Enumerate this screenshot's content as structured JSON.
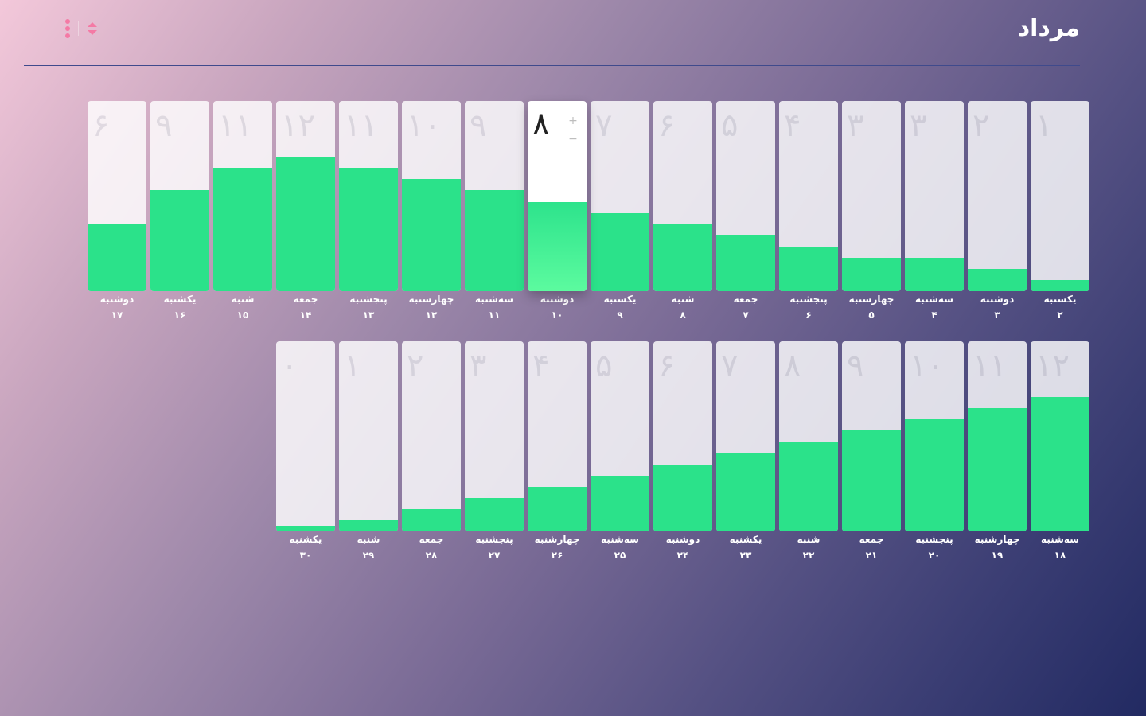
{
  "title": "مرداد",
  "toolbar": {
    "menu_icon": "more-vertical-icon",
    "sort_icon": "sort-icon"
  },
  "colors": {
    "fill": "#2be28a",
    "selected_fill_bottom": "#5cfb9f",
    "accent": "#f47aa5",
    "card": "#ffffff"
  },
  "scale_max": 17,
  "selected_index": 8,
  "selected_controls": {
    "increment": "+",
    "decrement": "−"
  },
  "days": [
    {
      "weekday": "یکشنبه",
      "date": "۲",
      "value": "۱",
      "level": 1
    },
    {
      "weekday": "دوشنبه",
      "date": "۳",
      "value": "۲",
      "level": 2
    },
    {
      "weekday": "سه‌شنبه",
      "date": "۴",
      "value": "۳",
      "level": 3
    },
    {
      "weekday": "چهارشنبه",
      "date": "۵",
      "value": "۳",
      "level": 3
    },
    {
      "weekday": "پنجشنبه",
      "date": "۶",
      "value": "۴",
      "level": 4
    },
    {
      "weekday": "جمعه",
      "date": "۷",
      "value": "۵",
      "level": 5
    },
    {
      "weekday": "شنبه",
      "date": "۸",
      "value": "۶",
      "level": 6
    },
    {
      "weekday": "یکشنبه",
      "date": "۹",
      "value": "۷",
      "level": 7
    },
    {
      "weekday": "دوشنبه",
      "date": "۱۰",
      "value": "۸",
      "level": 8
    },
    {
      "weekday": "سه‌شنبه",
      "date": "۱۱",
      "value": "۹",
      "level": 9
    },
    {
      "weekday": "چهارشنبه",
      "date": "۱۲",
      "value": "۱۰",
      "level": 10
    },
    {
      "weekday": "پنجشنبه",
      "date": "۱۳",
      "value": "۱۱",
      "level": 11
    },
    {
      "weekday": "جمعه",
      "date": "۱۴",
      "value": "۱۲",
      "level": 12
    },
    {
      "weekday": "شنبه",
      "date": "۱۵",
      "value": "۱۱",
      "level": 11
    },
    {
      "weekday": "یکشنبه",
      "date": "۱۶",
      "value": "۹",
      "level": 9
    },
    {
      "weekday": "دوشنبه",
      "date": "۱۷",
      "value": "۶",
      "level": 6
    },
    {
      "weekday": "سه‌شنبه",
      "date": "۱۸",
      "value": "۱۲",
      "level": 12
    },
    {
      "weekday": "چهارشنبه",
      "date": "۱۹",
      "value": "۱۱",
      "level": 11
    },
    {
      "weekday": "پنجشنبه",
      "date": "۲۰",
      "value": "۱۰",
      "level": 10
    },
    {
      "weekday": "جمعه",
      "date": "۲۱",
      "value": "۹",
      "level": 9
    },
    {
      "weekday": "شنبه",
      "date": "۲۲",
      "value": "۸",
      "level": 8
    },
    {
      "weekday": "یکشنبه",
      "date": "۲۳",
      "value": "۷",
      "level": 7
    },
    {
      "weekday": "دوشنبه",
      "date": "۲۴",
      "value": "۶",
      "level": 6
    },
    {
      "weekday": "سه‌شنبه",
      "date": "۲۵",
      "value": "۵",
      "level": 5
    },
    {
      "weekday": "چهارشنبه",
      "date": "۲۶",
      "value": "۴",
      "level": 4
    },
    {
      "weekday": "پنجشنبه",
      "date": "۲۷",
      "value": "۳",
      "level": 3
    },
    {
      "weekday": "جمعه",
      "date": "۲۸",
      "value": "۲",
      "level": 2
    },
    {
      "weekday": "شنبه",
      "date": "۲۹",
      "value": "۱",
      "level": 1
    },
    {
      "weekday": "یکشنبه",
      "date": "۳۰",
      "value": "۰",
      "level": 0.5
    }
  ]
}
